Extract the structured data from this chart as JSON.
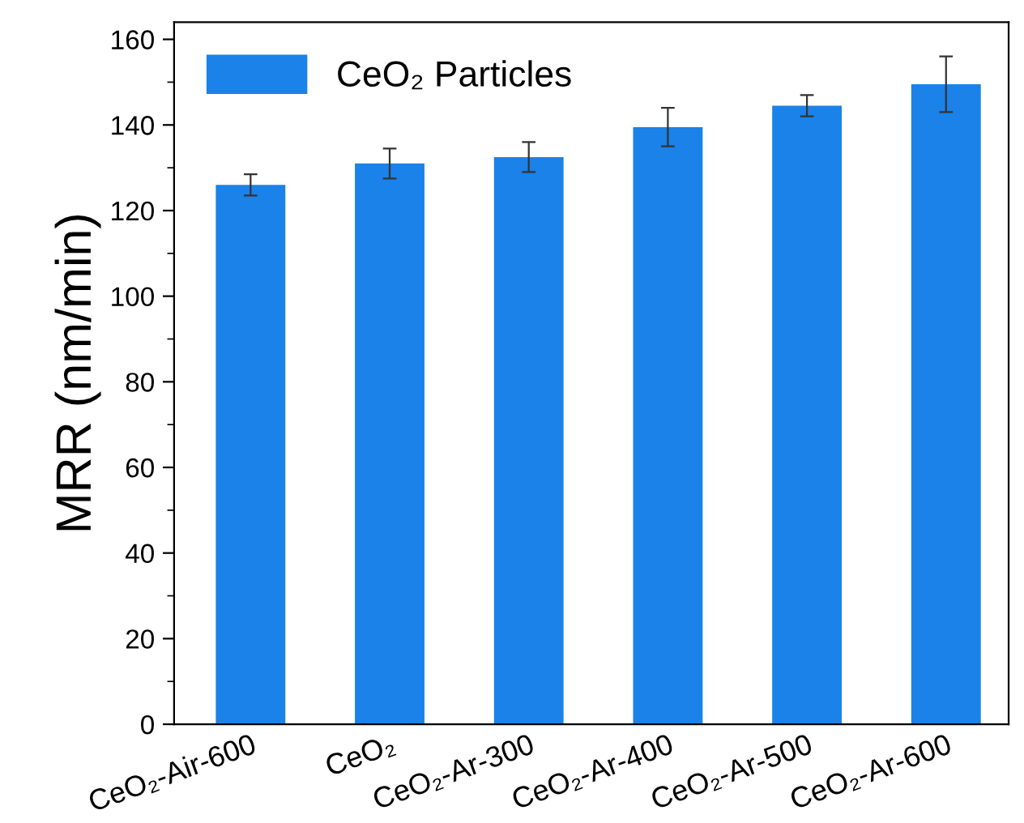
{
  "chart_data": {
    "type": "bar",
    "ylabel": "MRR (nm/min)",
    "categories": [
      "CeO₂-Air-600",
      "CeO₂",
      "CeO₂-Ar-300",
      "CeO₂-Ar-400",
      "CeO₂-Ar-500",
      "CeO₂-Ar-600"
    ],
    "series": [
      {
        "name": "CeO₂ Particles",
        "color": "#1a82e8",
        "values": [
          126,
          131,
          132.5,
          139.5,
          144.5,
          149.5
        ],
        "errors": [
          2.5,
          3.5,
          3.5,
          4.5,
          2.5,
          6.5
        ]
      }
    ],
    "ylim": [
      0,
      164
    ],
    "yticks": [
      0,
      20,
      40,
      60,
      80,
      100,
      120,
      140,
      160
    ],
    "grid": false,
    "legend": "top left"
  }
}
